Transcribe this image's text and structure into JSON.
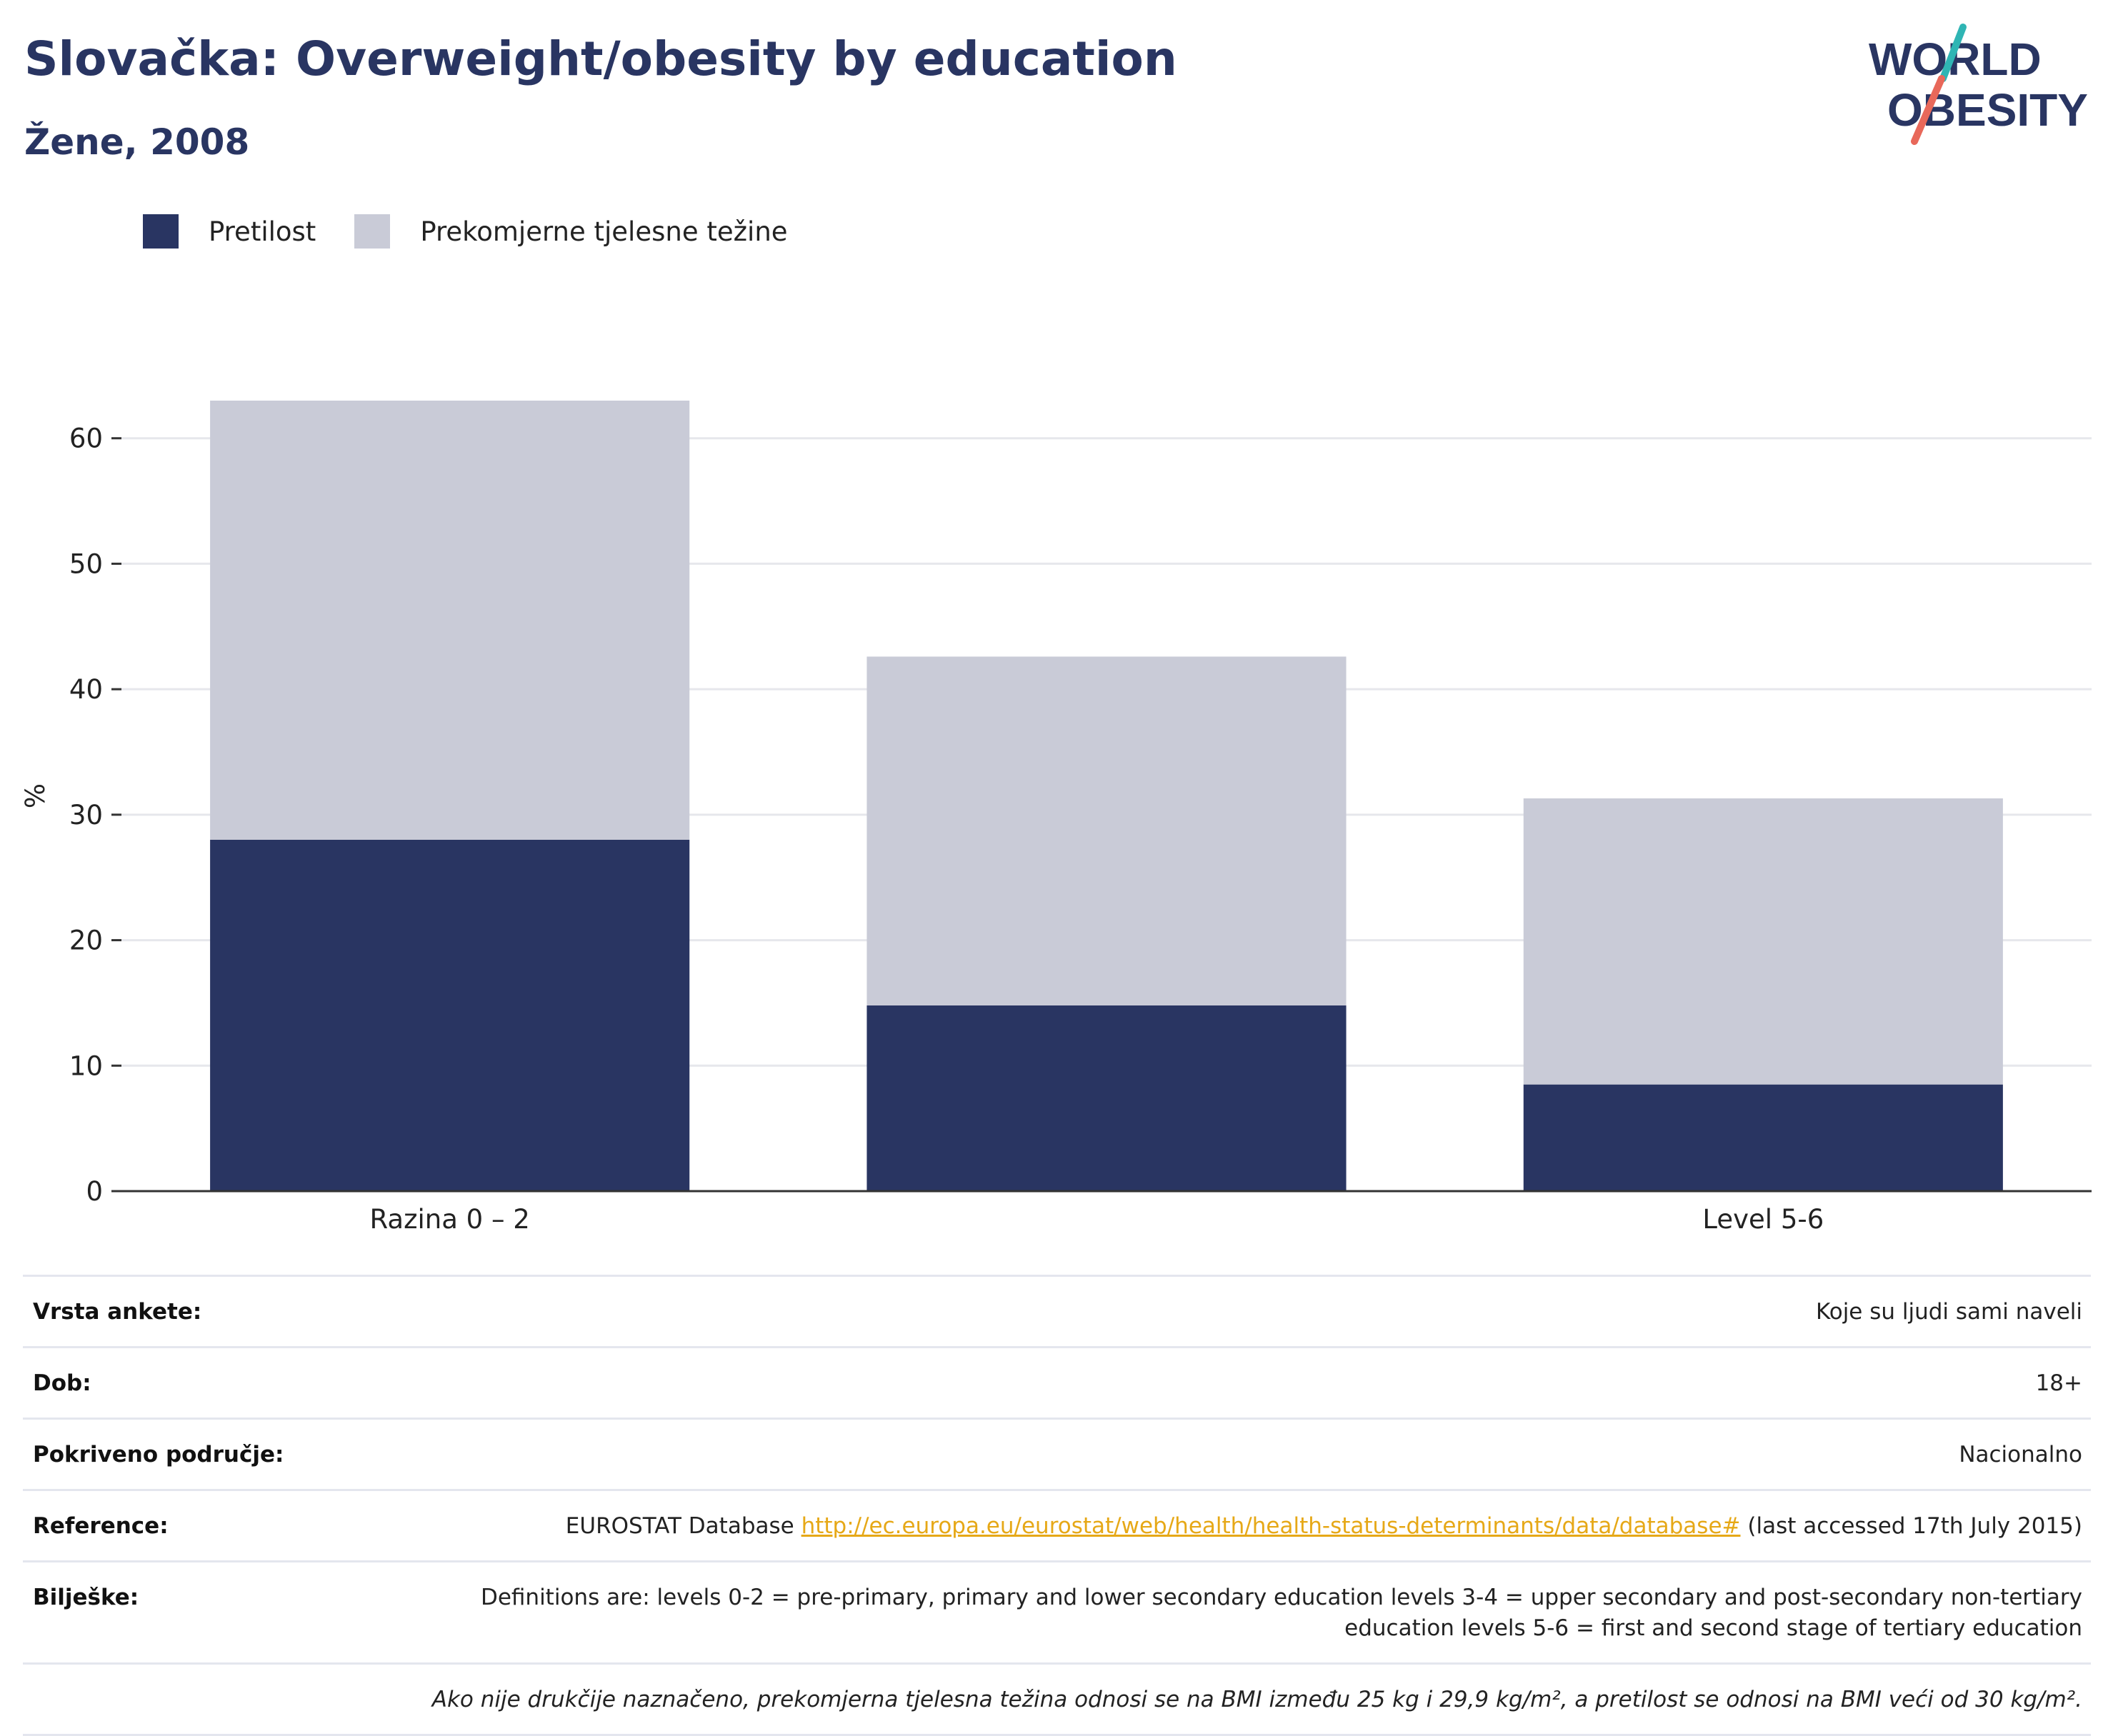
{
  "header": {
    "title": "Slovačka: Overweight/obesity by education",
    "subtitle": "Žene, 2008"
  },
  "logo": {
    "line1": "WORLD",
    "line2": "OBESITY",
    "accent_teal": "#2fb5b4",
    "accent_coral": "#e8685a"
  },
  "legend": {
    "items": [
      {
        "label": "Pretilost",
        "color": "#293562"
      },
      {
        "label": "Prekomjerne tjelesne težine",
        "color": "#c9cbd7"
      }
    ]
  },
  "chart_data": {
    "type": "bar",
    "stacked": true,
    "categories": [
      "Razina 0 – 2",
      "",
      "Level 5-6"
    ],
    "series": [
      {
        "name": "Pretilost",
        "values": [
          28,
          14.8,
          8.5
        ],
        "color": "#293562"
      },
      {
        "name": "Prekomjerne tjelesne težine",
        "values": [
          35,
          27.8,
          22.8
        ],
        "color": "#c9cbd7"
      }
    ],
    "totals": [
      63,
      42.6,
      31.3
    ],
    "ylabel": "%",
    "xlabel": "",
    "ylim": [
      0,
      63
    ],
    "yticks": [
      0,
      10,
      20,
      30,
      40,
      50,
      60
    ],
    "grid": true,
    "legend_position": "top-left"
  },
  "info": {
    "rows": [
      {
        "label": "Vrsta ankete:",
        "value": "Koje su ljudi sami naveli"
      },
      {
        "label": "Dob:",
        "value": "18+"
      },
      {
        "label": "Pokriveno područje:",
        "value": "Nacionalno"
      },
      {
        "label": "Reference:",
        "value_prefix": "EUROSTAT Database ",
        "link": "http://ec.europa.eu/eurostat/web/health/health-status-determinants/data/database#",
        "value_suffix": " (last accessed 17th July 2015)"
      },
      {
        "label": "Bilješke:",
        "value": "Definitions are: levels 0-2 = pre-primary, primary and lower secondary education levels 3-4 = upper secondary and post-secondary non-tertiary education levels 5-6 = first and second stage of tertiary education"
      }
    ],
    "footnote": "Ako nije drukčije naznačeno, prekomjerna tjelesna težina odnosi se na BMI između 25 kg i 29,9 kg/m², a pretilost se odnosi na BMI veći od 30 kg/m²."
  }
}
